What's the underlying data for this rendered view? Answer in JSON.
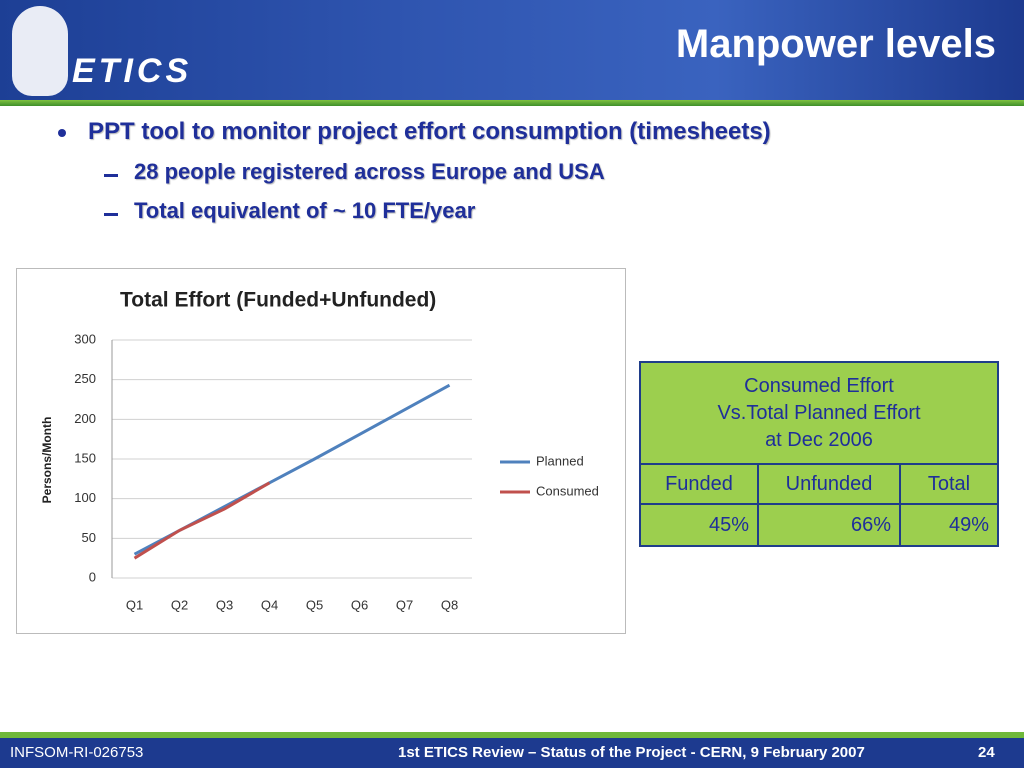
{
  "header": {
    "logo": "ETICS",
    "title": "Manpower levels"
  },
  "bullets": [
    {
      "text": "PPT tool to monitor project effort consumption (timesheets)",
      "sub": [
        "28 people registered across Europe and USA",
        "Total equivalent of ~ 10 FTE/year"
      ]
    }
  ],
  "chart_data": {
    "type": "line",
    "title": "Total Effort (Funded+Unfunded)",
    "ylabel": "Persons/Month",
    "categories": [
      "Q1",
      "Q2",
      "Q3",
      "Q4",
      "Q5",
      "Q6",
      "Q7",
      "Q8"
    ],
    "series": [
      {
        "name": "Planned",
        "color": "#4f81bd",
        "values": [
          30,
          60,
          90,
          120,
          150,
          181,
          212,
          243
        ]
      },
      {
        "name": "Consumed",
        "color": "#c0504d",
        "values": [
          25,
          60,
          87,
          120,
          null,
          null,
          null,
          null
        ]
      }
    ],
    "ylim": [
      0,
      300
    ],
    "yticks": [
      0,
      50,
      100,
      150,
      200,
      250,
      300
    ],
    "grid": true,
    "legend": "right"
  },
  "table": {
    "title_lines": [
      "Consumed Effort",
      "Vs.Total Planned Effort",
      "at Dec 2006"
    ],
    "header": [
      "Funded",
      "Unfunded",
      "Total"
    ],
    "rows": [
      [
        "45%",
        "66%",
        "49%"
      ]
    ]
  },
  "footer": {
    "left": "INFSOM-RI-026753",
    "center": "1st ETICS Review –  Status of the Project - CERN, 9 February 2007",
    "page": "24"
  }
}
